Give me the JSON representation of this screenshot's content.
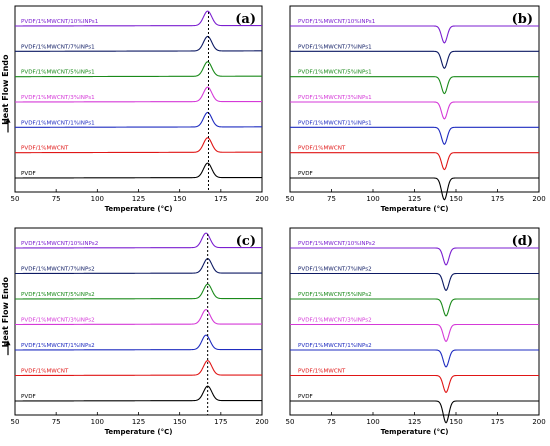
{
  "chart_data": [
    {
      "type": "line",
      "letter": "(a)",
      "xlabel": "Temperature (°C)",
      "ylabel": "Heat Flow Endo",
      "xlim": [
        50,
        200
      ],
      "xticks": [
        "50",
        "75",
        "100",
        "125",
        "150",
        "175",
        "200"
      ],
      "y_direction": "up",
      "arrow": true,
      "reference_line_x": 167.5,
      "series": [
        {
          "name": "PVDF/1%MWCNT/10%INPs1",
          "color": "#7b1fd0",
          "peak": 167,
          "width": 2.5,
          "height": 0.6
        },
        {
          "name": "PVDF/1%MWCNT/7%INPs1",
          "color": "#0d1a63",
          "peak": 167,
          "width": 2.5,
          "height": 0.6
        },
        {
          "name": "PVDF/1%MWCNT/5%INPs1",
          "color": "#1a8a1a",
          "peak": 167,
          "width": 2.5,
          "height": 0.6
        },
        {
          "name": "PVDF/1%MWCNT/3%INPs1",
          "color": "#d53ad8",
          "peak": 167,
          "width": 2.5,
          "height": 0.6
        },
        {
          "name": "PVDF/1%MWCNT/1%INPs1",
          "color": "#1f2cc0",
          "peak": 167,
          "width": 2.5,
          "height": 0.6
        },
        {
          "name": "PVDF/1%MWCNT",
          "color": "#e01616",
          "peak": 167,
          "width": 2.5,
          "height": 0.6
        },
        {
          "name": "PVDF",
          "color": "#000000",
          "peak": 167,
          "width": 2.5,
          "height": 0.6
        }
      ]
    },
    {
      "type": "line",
      "letter": "(b)",
      "xlabel": "Temperature (°C)",
      "ylabel": "",
      "xlim": [
        50,
        200
      ],
      "xticks": [
        "50",
        "75",
        "100",
        "125",
        "150",
        "175",
        "200"
      ],
      "y_direction": "down",
      "arrow": false,
      "series": [
        {
          "name": "PVDF/1%MWCNT/10%INPs1",
          "color": "#7b1fd0",
          "peak": 143,
          "width": 1.7,
          "height": 0.7
        },
        {
          "name": "PVDF/1%MWCNT/7%INPs1",
          "color": "#0d1a63",
          "peak": 143,
          "width": 1.7,
          "height": 0.7
        },
        {
          "name": "PVDF/1%MWCNT/5%INPs1",
          "color": "#1a8a1a",
          "peak": 143,
          "width": 1.7,
          "height": 0.7
        },
        {
          "name": "PVDF/1%MWCNT/3%INPs1",
          "color": "#d53ad8",
          "peak": 143,
          "width": 1.7,
          "height": 0.7
        },
        {
          "name": "PVDF/1%MWCNT/1%INPs1",
          "color": "#1f2cc0",
          "peak": 143,
          "width": 1.7,
          "height": 0.7
        },
        {
          "name": "PVDF/1%MWCNT",
          "color": "#e01616",
          "peak": 143,
          "width": 1.7,
          "height": 0.7
        },
        {
          "name": "PVDF",
          "color": "#000000",
          "peak": 143,
          "width": 1.7,
          "height": 0.9
        }
      ]
    },
    {
      "type": "line",
      "letter": "(c)",
      "xlabel": "Temperature (°C)",
      "ylabel": "Heat Flow Endo",
      "xlim": [
        50,
        200
      ],
      "xticks": [
        "50",
        "75",
        "100",
        "125",
        "150",
        "175",
        "200"
      ],
      "y_direction": "up",
      "arrow": true,
      "reference_line_x": 167,
      "series": [
        {
          "name": "PVDF/1%MWCNT/10%INPs2",
          "color": "#7b1fd0",
          "peak": 166,
          "width": 2.5,
          "height": 0.6
        },
        {
          "name": "PVDF/1%MWCNT/7%INPs2",
          "color": "#0d1a63",
          "peak": 167,
          "width": 2.5,
          "height": 0.6
        },
        {
          "name": "PVDF/1%MWCNT/5%INPs2",
          "color": "#1a8a1a",
          "peak": 167,
          "width": 2.5,
          "height": 0.6
        },
        {
          "name": "PVDF/1%MWCNT/3%INPs2",
          "color": "#d53ad8",
          "peak": 166,
          "width": 2.5,
          "height": 0.6
        },
        {
          "name": "PVDF/1%MWCNT/1%INPs2",
          "color": "#1f2cc0",
          "peak": 166,
          "width": 2.5,
          "height": 0.6
        },
        {
          "name": "PVDF/1%MWCNT",
          "color": "#e01616",
          "peak": 167,
          "width": 2.5,
          "height": 0.6
        },
        {
          "name": "PVDF",
          "color": "#000000",
          "peak": 167,
          "width": 2.5,
          "height": 0.6
        }
      ]
    },
    {
      "type": "line",
      "letter": "(d)",
      "xlabel": "Temperature (°C)",
      "ylabel": "",
      "xlim": [
        50,
        200
      ],
      "xticks": [
        "50",
        "75",
        "100",
        "125",
        "150",
        "175",
        "200"
      ],
      "y_direction": "down",
      "arrow": false,
      "series": [
        {
          "name": "PVDF/1%MWCNT/10%INPs2",
          "color": "#7b1fd0",
          "peak": 144,
          "width": 1.7,
          "height": 0.7
        },
        {
          "name": "PVDF/1%MWCNT/7%INPs2",
          "color": "#0d1a63",
          "peak": 144,
          "width": 1.7,
          "height": 0.7
        },
        {
          "name": "PVDF/1%MWCNT/5%INPs2",
          "color": "#1a8a1a",
          "peak": 144,
          "width": 1.7,
          "height": 0.7
        },
        {
          "name": "PVDF/1%MWCNT/3%INPs2",
          "color": "#d53ad8",
          "peak": 144,
          "width": 1.7,
          "height": 0.7
        },
        {
          "name": "PVDF/1%MWCNT/1%INPs2",
          "color": "#1f2cc0",
          "peak": 144,
          "width": 1.7,
          "height": 0.7
        },
        {
          "name": "PVDF/1%MWCNT",
          "color": "#e01616",
          "peak": 144,
          "width": 1.7,
          "height": 0.7
        },
        {
          "name": "PVDF",
          "color": "#000000",
          "peak": 144,
          "width": 1.7,
          "height": 0.9
        }
      ]
    }
  ]
}
